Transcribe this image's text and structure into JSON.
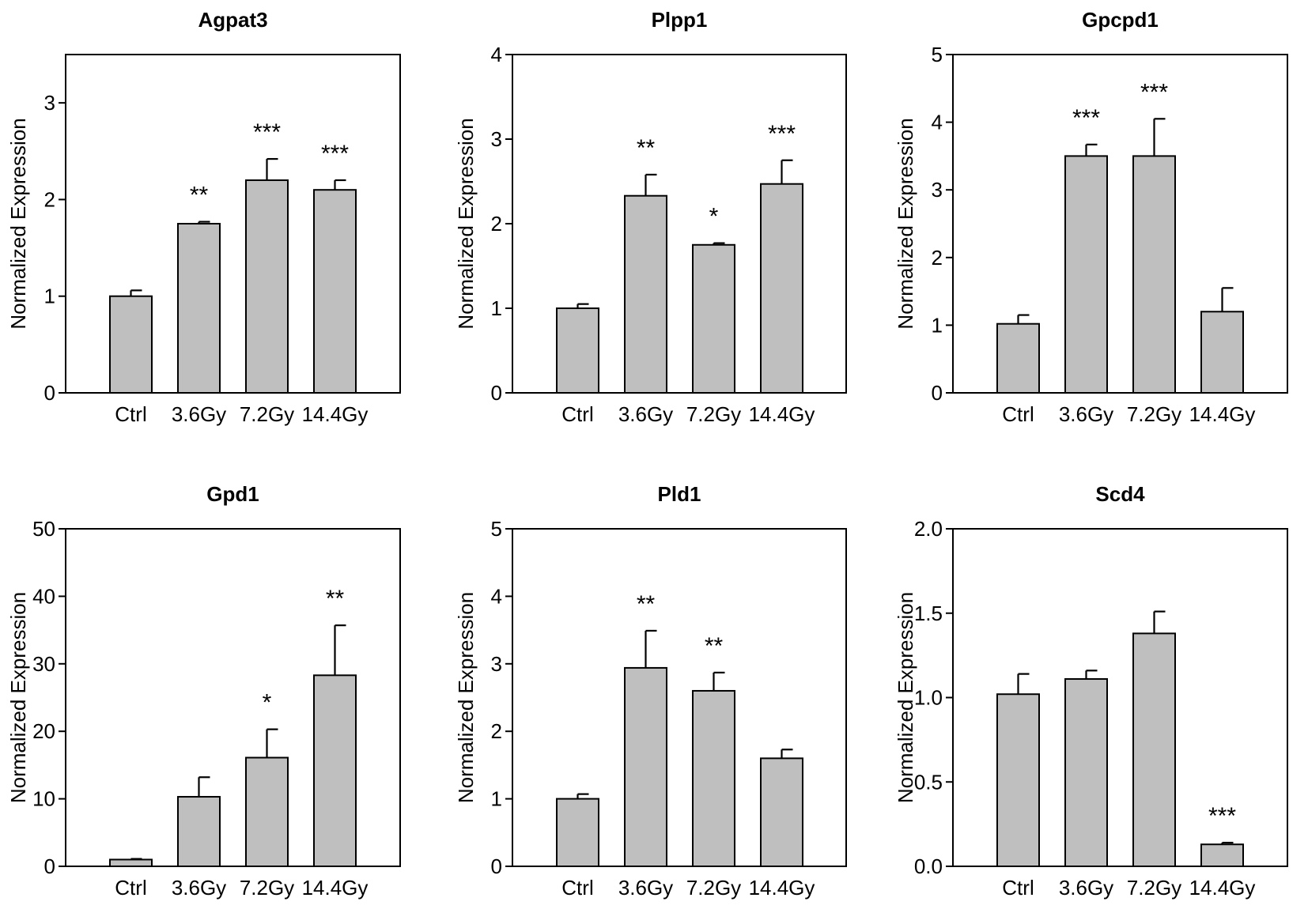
{
  "chart_data": [
    {
      "type": "bar",
      "title": "Agpat3",
      "ylabel": "Normalized Expression",
      "categories": [
        "Ctrl",
        "3.6Gy",
        "7.2Gy",
        "14.4Gy"
      ],
      "values": [
        1.0,
        1.75,
        2.2,
        2.1
      ],
      "errors": [
        0.06,
        0.02,
        0.22,
        0.1
      ],
      "significance": [
        "",
        "**",
        "***",
        "***"
      ],
      "ylim": [
        0,
        3.5
      ],
      "yticks": [
        0,
        1,
        2,
        3
      ],
      "ytick_labels": [
        "0",
        "1",
        "2",
        "3"
      ]
    },
    {
      "type": "bar",
      "title": "Plpp1",
      "ylabel": "Normalized Expression",
      "categories": [
        "Ctrl",
        "3.6Gy",
        "7.2Gy",
        "14.4Gy"
      ],
      "values": [
        1.0,
        2.33,
        1.75,
        2.47
      ],
      "errors": [
        0.05,
        0.25,
        0.02,
        0.28
      ],
      "significance": [
        "",
        "**",
        "*",
        "***"
      ],
      "ylim": [
        0,
        4
      ],
      "yticks": [
        0,
        1,
        2,
        3,
        4
      ],
      "ytick_labels": [
        "0",
        "1",
        "2",
        "3",
        "4"
      ]
    },
    {
      "type": "bar",
      "title": "Gpcpd1",
      "ylabel": "Normalized Expression",
      "categories": [
        "Ctrl",
        "3.6Gy",
        "7.2Gy",
        "14.4Gy"
      ],
      "values": [
        1.02,
        3.5,
        3.5,
        1.2
      ],
      "errors": [
        0.13,
        0.17,
        0.55,
        0.35
      ],
      "significance": [
        "",
        "***",
        "***",
        ""
      ],
      "ylim": [
        0,
        5
      ],
      "yticks": [
        0,
        1,
        2,
        3,
        4,
        5
      ],
      "ytick_labels": [
        "0",
        "1",
        "2",
        "3",
        "4",
        "5"
      ]
    },
    {
      "type": "bar",
      "title": "Gpd1",
      "ylabel": "Normalized Expression",
      "categories": [
        "Ctrl",
        "3.6Gy",
        "7.2Gy",
        "14.4Gy"
      ],
      "values": [
        1.0,
        10.3,
        16.1,
        28.3
      ],
      "errors": [
        0.1,
        2.9,
        4.2,
        7.4
      ],
      "significance": [
        "",
        "",
        "*",
        "**"
      ],
      "ylim": [
        0,
        50
      ],
      "yticks": [
        0,
        10,
        20,
        30,
        40,
        50
      ],
      "ytick_labels": [
        "0",
        "10",
        "20",
        "30",
        "40",
        "50"
      ]
    },
    {
      "type": "bar",
      "title": "Pld1",
      "ylabel": "Normalized Expression",
      "categories": [
        "Ctrl",
        "3.6Gy",
        "7.2Gy",
        "14.4Gy"
      ],
      "values": [
        1.0,
        2.94,
        2.6,
        1.6
      ],
      "errors": [
        0.07,
        0.55,
        0.27,
        0.13
      ],
      "significance": [
        "",
        "**",
        "**",
        ""
      ],
      "ylim": [
        0,
        5
      ],
      "yticks": [
        0,
        1,
        2,
        3,
        4,
        5
      ],
      "ytick_labels": [
        "0",
        "1",
        "2",
        "3",
        "4",
        "5"
      ]
    },
    {
      "type": "bar",
      "title": "Scd4",
      "ylabel": "Normalized Expression",
      "categories": [
        "Ctrl",
        "3.6Gy",
        "7.2Gy",
        "14.4Gy"
      ],
      "values": [
        1.02,
        1.11,
        1.38,
        0.13
      ],
      "errors": [
        0.12,
        0.05,
        0.13,
        0.01
      ],
      "significance": [
        "",
        "",
        "",
        "***"
      ],
      "ylim": [
        0,
        2.0
      ],
      "yticks": [
        0,
        0.5,
        1.0,
        1.5,
        2.0
      ],
      "ytick_labels": [
        "0.0",
        "0.5",
        "1.0",
        "1.5",
        "2.0"
      ]
    }
  ]
}
